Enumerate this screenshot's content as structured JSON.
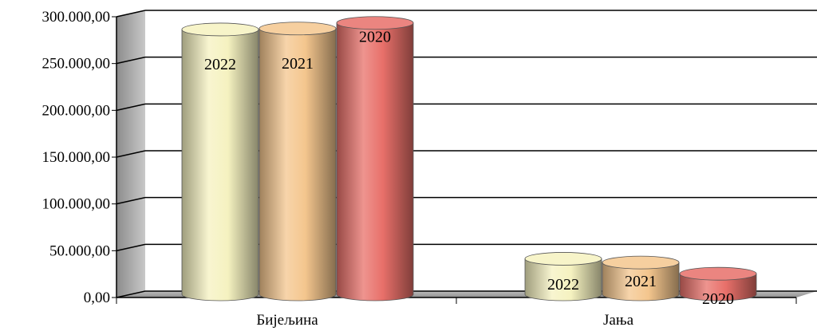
{
  "chart_data": {
    "type": "bar",
    "style": "3d-cylinder",
    "categories": [
      "Бијељина",
      "Јања"
    ],
    "series": [
      {
        "label": "2022",
        "values": [
          283000,
          38000
        ],
        "color": "#F5F2C0"
      },
      {
        "label": "2021",
        "values": [
          284000,
          34000
        ],
        "color": "#F4C68E"
      },
      {
        "label": "2020",
        "values": [
          290000,
          22000
        ],
        "color": "#E8706A"
      }
    ],
    "ylim": [
      0,
      300000
    ],
    "yticks": [
      0,
      50000,
      100000,
      150000,
      200000,
      250000,
      300000
    ],
    "ytick_labels": [
      "0,00",
      "50.000,00",
      "100.000,00",
      "150.000,00",
      "200.000,00",
      "250.000,00",
      "300.000,00"
    ],
    "grid": true,
    "legend": "none",
    "title": "",
    "xlabel": "",
    "ylabel": ""
  }
}
